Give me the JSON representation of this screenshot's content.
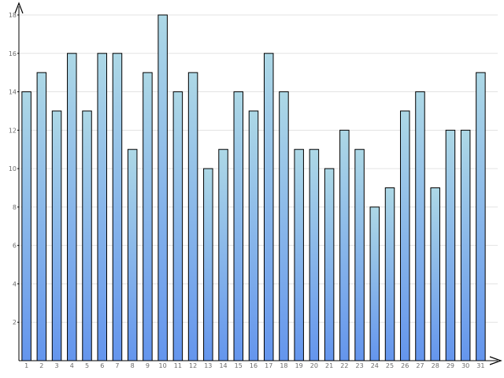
{
  "chart_data": {
    "type": "bar",
    "categories": [
      "1",
      "2",
      "3",
      "4",
      "5",
      "6",
      "7",
      "8",
      "9",
      "10",
      "11",
      "12",
      "13",
      "14",
      "15",
      "16",
      "17",
      "18",
      "19",
      "20",
      "21",
      "22",
      "23",
      "24",
      "25",
      "26",
      "27",
      "28",
      "29",
      "30",
      "31"
    ],
    "values": [
      14,
      15,
      13,
      16,
      13,
      16,
      16,
      11,
      15,
      18,
      14,
      15,
      10,
      11,
      14,
      13,
      16,
      14,
      11,
      11,
      10,
      12,
      11,
      8,
      9,
      13,
      14,
      9,
      12,
      12,
      15
    ],
    "ylim": [
      0,
      18
    ],
    "yticks": [
      2,
      4,
      6,
      8,
      10,
      12,
      14,
      16,
      18
    ],
    "ytick_labels": [
      "2",
      "4",
      "6",
      "8",
      "10",
      "12",
      "14",
      "16",
      "18"
    ],
    "grid": true,
    "legend": "none",
    "colors": {
      "bar_top": "#add8e6",
      "bar_bottom": "#6495ed",
      "grid": "#e3e3e3",
      "axis": "#000000"
    }
  }
}
